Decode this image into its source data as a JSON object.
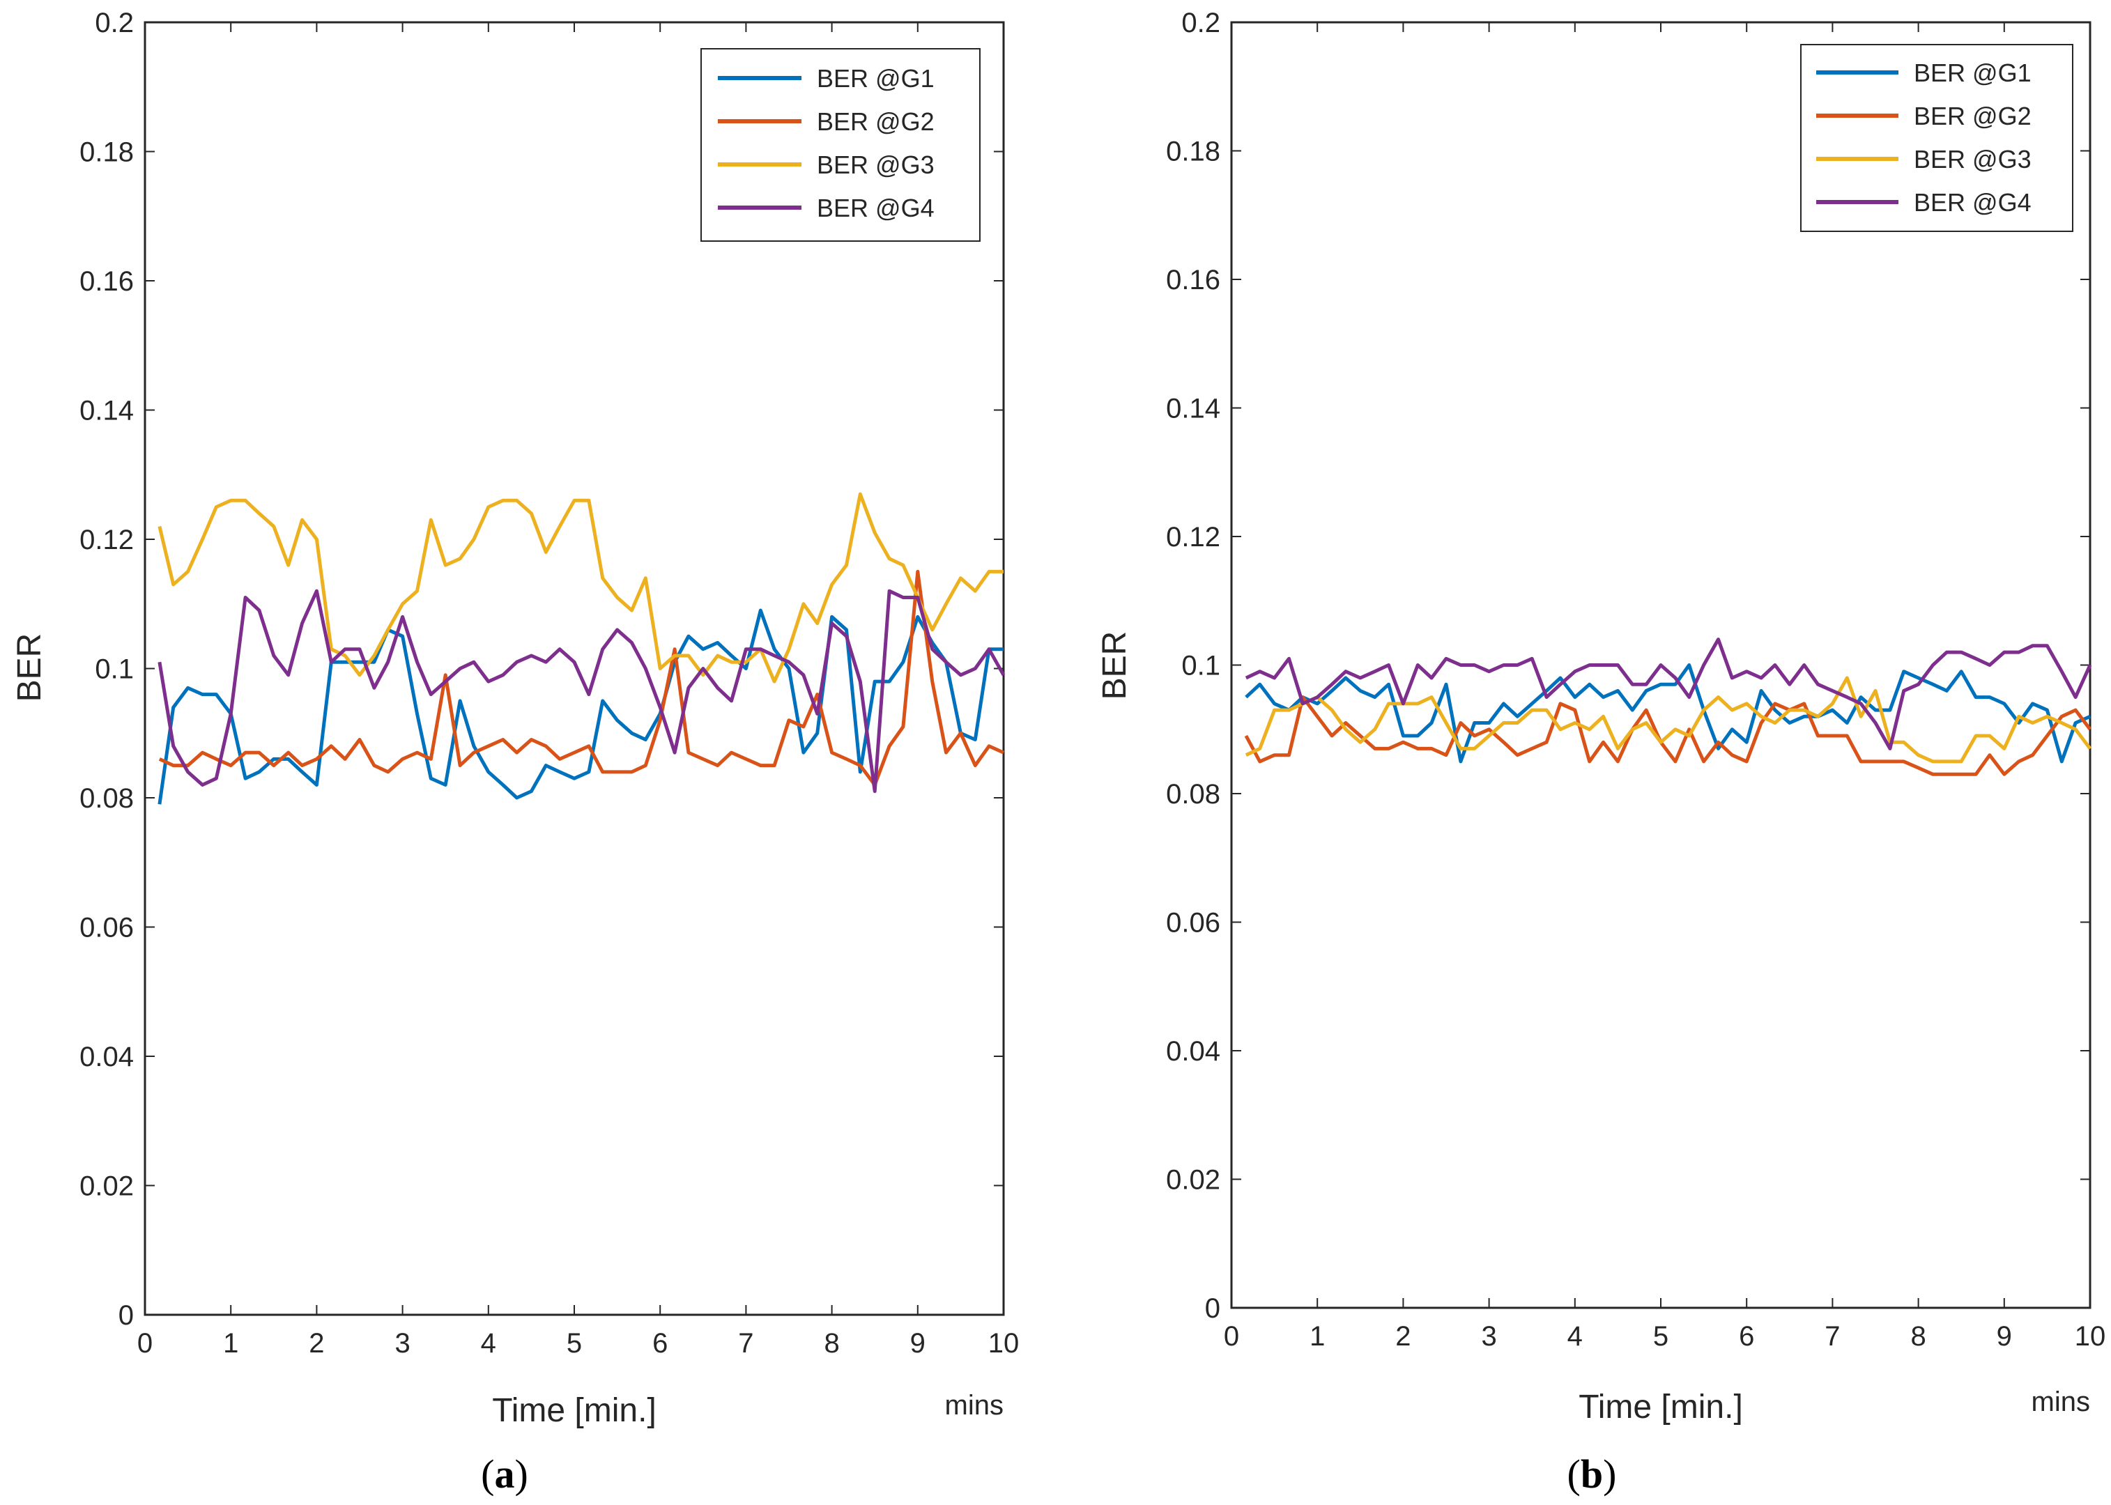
{
  "colors": {
    "axis": "#262626",
    "series": [
      "#0072BD",
      "#D95319",
      "#EDB120",
      "#7E2F8E"
    ]
  },
  "chart_data": [
    {
      "type": "line",
      "caption_open": "(",
      "caption_letter": "a",
      "caption_close": ")",
      "xlabel": "Time [min.]",
      "ylabel": "BER",
      "unit_note": "mins",
      "xlim": [
        0,
        10
      ],
      "ylim": [
        0,
        0.2
      ],
      "xticks": [
        "0",
        "1",
        "2",
        "3",
        "4",
        "5",
        "6",
        "7",
        "8",
        "9",
        "10"
      ],
      "yticks": [
        "0",
        "0.02",
        "0.04",
        "0.06",
        "0.08",
        "0.1",
        "0.12",
        "0.14",
        "0.16",
        "0.18",
        "0.2"
      ],
      "grid": false,
      "legend_position": "top-right",
      "x": [
        0.17,
        0.33,
        0.5,
        0.67,
        0.83,
        1.0,
        1.17,
        1.33,
        1.5,
        1.67,
        1.83,
        2.0,
        2.17,
        2.33,
        2.5,
        2.67,
        2.83,
        3.0,
        3.17,
        3.33,
        3.5,
        3.67,
        3.83,
        4.0,
        4.17,
        4.33,
        4.5,
        4.67,
        4.83,
        5.0,
        5.17,
        5.33,
        5.5,
        5.67,
        5.83,
        6.0,
        6.17,
        6.33,
        6.5,
        6.67,
        6.83,
        7.0,
        7.17,
        7.33,
        7.5,
        7.67,
        7.83,
        8.0,
        8.17,
        8.33,
        8.5,
        8.67,
        8.83,
        9.0,
        9.17,
        9.33,
        9.5,
        9.67,
        9.83,
        10.0
      ],
      "series": [
        {
          "name": "BER @G1",
          "values": [
            0.079,
            0.094,
            0.097,
            0.096,
            0.096,
            0.093,
            0.083,
            0.084,
            0.086,
            0.086,
            0.084,
            0.082,
            0.101,
            0.101,
            0.101,
            0.101,
            0.106,
            0.105,
            0.093,
            0.083,
            0.082,
            0.095,
            0.088,
            0.084,
            0.082,
            0.08,
            0.081,
            0.085,
            0.084,
            0.083,
            0.084,
            0.095,
            0.092,
            0.09,
            0.089,
            0.093,
            0.101,
            0.105,
            0.103,
            0.104,
            0.102,
            0.1,
            0.109,
            0.103,
            0.1,
            0.087,
            0.09,
            0.108,
            0.106,
            0.084,
            0.098,
            0.098,
            0.101,
            0.108,
            0.104,
            0.101,
            0.09,
            0.089,
            0.103,
            0.103
          ]
        },
        {
          "name": "BER @G2",
          "values": [
            0.086,
            0.085,
            0.085,
            0.087,
            0.086,
            0.085,
            0.087,
            0.087,
            0.085,
            0.087,
            0.085,
            0.086,
            0.088,
            0.086,
            0.089,
            0.085,
            0.084,
            0.086,
            0.087,
            0.086,
            0.099,
            0.085,
            0.087,
            0.088,
            0.089,
            0.087,
            0.089,
            0.088,
            0.086,
            0.087,
            0.088,
            0.084,
            0.084,
            0.084,
            0.085,
            0.092,
            0.103,
            0.087,
            0.086,
            0.085,
            0.087,
            0.086,
            0.085,
            0.085,
            0.092,
            0.091,
            0.096,
            0.087,
            0.086,
            0.085,
            0.082,
            0.088,
            0.091,
            0.115,
            0.098,
            0.087,
            0.09,
            0.085,
            0.088,
            0.087
          ]
        },
        {
          "name": "BER @G3",
          "values": [
            0.122,
            0.113,
            0.115,
            0.12,
            0.125,
            0.126,
            0.126,
            0.124,
            0.122,
            0.116,
            0.123,
            0.12,
            0.103,
            0.102,
            0.099,
            0.102,
            0.106,
            0.11,
            0.112,
            0.123,
            0.116,
            0.117,
            0.12,
            0.125,
            0.126,
            0.126,
            0.124,
            0.118,
            0.122,
            0.126,
            0.126,
            0.114,
            0.111,
            0.109,
            0.114,
            0.1,
            0.102,
            0.102,
            0.099,
            0.102,
            0.101,
            0.101,
            0.103,
            0.098,
            0.103,
            0.11,
            0.107,
            0.113,
            0.116,
            0.127,
            0.121,
            0.117,
            0.116,
            0.111,
            0.106,
            0.11,
            0.114,
            0.112,
            0.115,
            0.115
          ]
        },
        {
          "name": "BER @G4",
          "values": [
            0.101,
            0.088,
            0.084,
            0.082,
            0.083,
            0.093,
            0.111,
            0.109,
            0.102,
            0.099,
            0.107,
            0.112,
            0.101,
            0.103,
            0.103,
            0.097,
            0.101,
            0.108,
            0.101,
            0.096,
            0.098,
            0.1,
            0.101,
            0.098,
            0.099,
            0.101,
            0.102,
            0.101,
            0.103,
            0.101,
            0.096,
            0.103,
            0.106,
            0.104,
            0.1,
            0.094,
            0.087,
            0.097,
            0.1,
            0.097,
            0.095,
            0.103,
            0.103,
            0.102,
            0.101,
            0.099,
            0.093,
            0.107,
            0.105,
            0.098,
            0.081,
            0.112,
            0.111,
            0.111,
            0.103,
            0.101,
            0.099,
            0.1,
            0.103,
            0.099
          ]
        }
      ]
    },
    {
      "type": "line",
      "caption_open": "(",
      "caption_letter": "b",
      "caption_close": ")",
      "xlabel": "Time [min.]",
      "ylabel": "BER",
      "unit_note": "mins",
      "xlim": [
        0,
        10
      ],
      "ylim": [
        0,
        0.2
      ],
      "xticks": [
        "0",
        "1",
        "2",
        "3",
        "4",
        "5",
        "6",
        "7",
        "8",
        "9",
        "10"
      ],
      "yticks": [
        "0",
        "0.02",
        "0.04",
        "0.06",
        "0.08",
        "0.1",
        "0.12",
        "0.14",
        "0.16",
        "0.18",
        "0.2"
      ],
      "grid": false,
      "legend_position": "top-right",
      "x": [
        0.17,
        0.33,
        0.5,
        0.67,
        0.83,
        1.0,
        1.17,
        1.33,
        1.5,
        1.67,
        1.83,
        2.0,
        2.17,
        2.33,
        2.5,
        2.67,
        2.83,
        3.0,
        3.17,
        3.33,
        3.5,
        3.67,
        3.83,
        4.0,
        4.17,
        4.33,
        4.5,
        4.67,
        4.83,
        5.0,
        5.17,
        5.33,
        5.5,
        5.67,
        5.83,
        6.0,
        6.17,
        6.33,
        6.5,
        6.67,
        6.83,
        7.0,
        7.17,
        7.33,
        7.5,
        7.67,
        7.83,
        8.0,
        8.17,
        8.33,
        8.5,
        8.67,
        8.83,
        9.0,
        9.17,
        9.33,
        9.5,
        9.67,
        9.83,
        10.0
      ],
      "series": [
        {
          "name": "BER @G1",
          "values": [
            0.095,
            0.097,
            0.094,
            0.093,
            0.095,
            0.094,
            0.096,
            0.098,
            0.096,
            0.095,
            0.097,
            0.089,
            0.089,
            0.091,
            0.097,
            0.085,
            0.091,
            0.091,
            0.094,
            0.092,
            0.094,
            0.096,
            0.098,
            0.095,
            0.097,
            0.095,
            0.096,
            0.093,
            0.096,
            0.097,
            0.097,
            0.1,
            0.093,
            0.087,
            0.09,
            0.088,
            0.096,
            0.093,
            0.091,
            0.092,
            0.092,
            0.093,
            0.091,
            0.095,
            0.093,
            0.093,
            0.099,
            0.098,
            0.097,
            0.096,
            0.099,
            0.095,
            0.095,
            0.094,
            0.091,
            0.094,
            0.093,
            0.085,
            0.091,
            0.092
          ]
        },
        {
          "name": "BER @G2",
          "values": [
            0.089,
            0.085,
            0.086,
            0.086,
            0.095,
            0.092,
            0.089,
            0.091,
            0.089,
            0.087,
            0.087,
            0.088,
            0.087,
            0.087,
            0.086,
            0.091,
            0.089,
            0.09,
            0.088,
            0.086,
            0.087,
            0.088,
            0.094,
            0.093,
            0.085,
            0.088,
            0.085,
            0.09,
            0.093,
            0.088,
            0.085,
            0.09,
            0.085,
            0.088,
            0.086,
            0.085,
            0.091,
            0.094,
            0.093,
            0.094,
            0.089,
            0.089,
            0.089,
            0.085,
            0.085,
            0.085,
            0.085,
            0.084,
            0.083,
            0.083,
            0.083,
            0.083,
            0.086,
            0.083,
            0.085,
            0.086,
            0.089,
            0.092,
            0.093,
            0.09
          ]
        },
        {
          "name": "BER @G3",
          "values": [
            0.086,
            0.087,
            0.093,
            0.093,
            0.094,
            0.095,
            0.093,
            0.09,
            0.088,
            0.09,
            0.094,
            0.094,
            0.094,
            0.095,
            0.091,
            0.087,
            0.087,
            0.089,
            0.091,
            0.091,
            0.093,
            0.093,
            0.09,
            0.091,
            0.09,
            0.092,
            0.087,
            0.09,
            0.091,
            0.088,
            0.09,
            0.089,
            0.093,
            0.095,
            0.093,
            0.094,
            0.092,
            0.091,
            0.093,
            0.093,
            0.092,
            0.094,
            0.098,
            0.092,
            0.096,
            0.088,
            0.088,
            0.086,
            0.085,
            0.085,
            0.085,
            0.089,
            0.089,
            0.087,
            0.092,
            0.091,
            0.092,
            0.091,
            0.09,
            0.087
          ]
        },
        {
          "name": "BER @G4",
          "values": [
            0.098,
            0.099,
            0.098,
            0.101,
            0.094,
            0.095,
            0.097,
            0.099,
            0.098,
            0.099,
            0.1,
            0.094,
            0.1,
            0.098,
            0.101,
            0.1,
            0.1,
            0.099,
            0.1,
            0.1,
            0.101,
            0.095,
            0.097,
            0.099,
            0.1,
            0.1,
            0.1,
            0.097,
            0.097,
            0.1,
            0.098,
            0.095,
            0.1,
            0.104,
            0.098,
            0.099,
            0.098,
            0.1,
            0.097,
            0.1,
            0.097,
            0.096,
            0.095,
            0.094,
            0.091,
            0.087,
            0.096,
            0.097,
            0.1,
            0.102,
            0.102,
            0.101,
            0.1,
            0.102,
            0.102,
            0.103,
            0.103,
            0.099,
            0.095,
            0.1
          ]
        }
      ]
    }
  ]
}
